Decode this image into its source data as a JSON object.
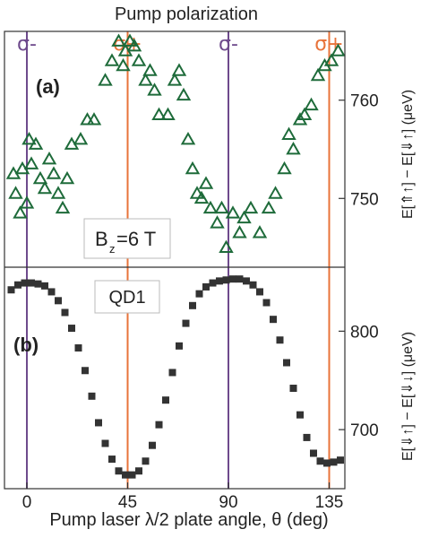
{
  "header": {
    "title": "Pump polarization"
  },
  "polarization_markers": [
    {
      "label": "σ-",
      "angle": 0,
      "color": "#6e4a8c"
    },
    {
      "label": "σ+",
      "angle": 45,
      "color": "#e8733a"
    },
    {
      "label": "σ-",
      "angle": 90,
      "color": "#6e4a8c"
    },
    {
      "label": "σ+",
      "angle": 135,
      "color": "#e8733a"
    }
  ],
  "annotations": {
    "panel_a": "(a)",
    "panel_b": "(b)",
    "field_text": "B",
    "field_sub": "z",
    "field_value": " =6 T",
    "dot_label": "QD1"
  },
  "chart_data": [
    {
      "type": "scatter",
      "panel": "(a)",
      "marker": "triangle-open",
      "color": "#1e6b3a",
      "xlim": [
        -10,
        142
      ],
      "ylim": [
        743,
        767
      ],
      "yticks": [
        750,
        760
      ],
      "ylabel": "E[⇑↑] − E[⇓↑] (μeV)",
      "x": [
        -6,
        -5,
        -3,
        -2,
        0,
        1,
        2,
        4,
        6,
        8,
        10,
        12,
        14,
        16,
        18,
        20,
        24,
        27,
        30,
        35,
        38,
        41,
        43,
        44,
        46,
        48,
        50,
        53,
        55,
        57,
        59,
        63,
        66,
        68,
        70,
        72,
        74,
        76,
        78,
        80,
        82,
        85,
        87,
        89,
        92,
        95,
        97,
        100,
        104,
        108,
        111,
        115,
        117,
        119,
        122,
        124,
        127,
        130,
        133,
        136,
        139
      ],
      "y": [
        752.5,
        750.5,
        748.5,
        753,
        749.5,
        756,
        753.5,
        755.5,
        752,
        751,
        754,
        752.5,
        750.5,
        749,
        752,
        755.5,
        756,
        758,
        758,
        762,
        764,
        766,
        763.5,
        765,
        766,
        765.5,
        764,
        762,
        763,
        761,
        758.5,
        758.5,
        762,
        763,
        760.5,
        756,
        753,
        750.5,
        750,
        751.5,
        749,
        747.5,
        749,
        745,
        748.5,
        746.5,
        748,
        749,
        746.5,
        749,
        750.5,
        753,
        756.5,
        755,
        758,
        758.5,
        759.5,
        762.5,
        763.5,
        764,
        765
      ]
    },
    {
      "type": "scatter",
      "panel": "(b)",
      "marker": "square-filled",
      "color": "#333333",
      "xlim": [
        -10,
        142
      ],
      "ylim": [
        640,
        865
      ],
      "yticks": [
        700,
        800
      ],
      "ylabel": "E[⇓↑] − E[⇓↓] (μeV)",
      "x": [
        -7,
        -4,
        -1,
        2,
        5,
        8,
        11,
        14,
        17,
        20,
        23,
        26,
        29,
        32,
        35,
        38,
        41,
        44,
        47,
        50,
        53,
        56,
        59,
        62,
        65,
        68,
        71,
        74,
        77,
        80,
        83,
        86,
        89,
        92,
        95,
        98,
        101,
        104,
        107,
        110,
        113,
        116,
        119,
        122,
        125,
        128,
        131,
        134,
        137,
        140
      ],
      "y": [
        842,
        847,
        849,
        849,
        848,
        846,
        840,
        831,
        819,
        803,
        783,
        760,
        734,
        707,
        686,
        670,
        658,
        654,
        654,
        658,
        668,
        684,
        705,
        730,
        758,
        785,
        808,
        826,
        838,
        845,
        849,
        851,
        852,
        853,
        853,
        851,
        847,
        840,
        829,
        812,
        791,
        768,
        742,
        715,
        692,
        676,
        668,
        666,
        667,
        669
      ]
    }
  ],
  "x_axis": {
    "label": "Pump laser λ/2 plate angle, θ (deg)",
    "ticks": [
      0,
      45,
      90,
      135
    ]
  }
}
